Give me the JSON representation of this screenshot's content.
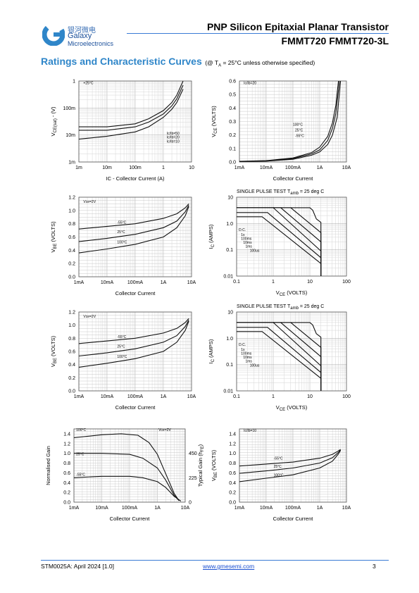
{
  "header": {
    "brand_cn": "银河微电",
    "brand_en_1": "Galaxy",
    "brand_en_2": "Microelectronics",
    "title": "PNP Silicon Epitaxial Planar Transistor",
    "part_numbers": "FMMT720  FMMT720-3L",
    "accent_color": "#3a7bd5",
    "logo_icon": "galaxy-g-logo-icon"
  },
  "section": {
    "title": "Ratings and Characteristic Curves",
    "note": "(@ T",
    "note_sub": "A",
    "note_tail": " = 25°C unless otherwise specified)"
  },
  "charts": [
    {
      "id": "vce-sat-vs-ic",
      "type": "line",
      "ylabel_main": "V",
      "ylabel_sub": "CE(sat)",
      "ylabel_tail": " - (V)",
      "xlabel": "IC - Collector Current (A)",
      "x_ticks": [
        "1m",
        "10m",
        "100m",
        "1",
        "10"
      ],
      "y_ticks": [
        "1m",
        "10m",
        "100m",
        "1"
      ],
      "x_scale": "log",
      "y_scale": "log",
      "xlim": [
        0.001,
        10
      ],
      "ylim": [
        0.001,
        1
      ],
      "annotations": [
        "+25°C",
        "Ic/Ib=50",
        "Ic/Ib=20",
        "Ic/Ib=10"
      ],
      "series": [
        {
          "x": [
            0.001,
            0.01,
            0.1,
            0.3,
            1,
            2,
            3,
            5
          ],
          "y": [
            0.02,
            0.02,
            0.026,
            0.04,
            0.08,
            0.16,
            0.3,
            1.0
          ]
        },
        {
          "x": [
            0.001,
            0.01,
            0.1,
            0.3,
            1,
            2,
            3,
            5
          ],
          "y": [
            0.015,
            0.015,
            0.02,
            0.03,
            0.06,
            0.12,
            0.22,
            0.7
          ]
        },
        {
          "x": [
            0.001,
            0.01,
            0.1,
            0.3,
            1,
            2,
            3,
            5
          ],
          "y": [
            0.007,
            0.009,
            0.013,
            0.02,
            0.045,
            0.09,
            0.16,
            0.5
          ]
        }
      ]
    },
    {
      "id": "vce-vs-ic",
      "type": "line",
      "ylabel_main": "V",
      "ylabel_sub": "CE",
      "ylabel_tail": "  (VOLTS)",
      "xlabel": "Collector Current",
      "x_ticks": [
        "1mA",
        "10mA",
        "100mA",
        "1A",
        "10A"
      ],
      "y_ticks": [
        "0.0",
        "0.1",
        "0.2",
        "0.3",
        "0.4",
        "0.5",
        "0.6"
      ],
      "x_scale": "log",
      "y_scale": "linear",
      "xlim": [
        0.001,
        10
      ],
      "ylim": [
        0,
        0.6
      ],
      "annotations": [
        "Ic/Ib=20",
        "100°C",
        "25°C",
        "-55°C"
      ],
      "series": [
        {
          "x": [
            0.001,
            0.01,
            0.1,
            0.5,
            1,
            2,
            3,
            4,
            5
          ],
          "y": [
            0.005,
            0.01,
            0.03,
            0.07,
            0.11,
            0.19,
            0.29,
            0.42,
            0.6
          ]
        },
        {
          "x": [
            0.001,
            0.01,
            0.1,
            0.5,
            1,
            2,
            3,
            4,
            5.5
          ],
          "y": [
            0.004,
            0.008,
            0.025,
            0.06,
            0.09,
            0.16,
            0.25,
            0.36,
            0.6
          ]
        },
        {
          "x": [
            0.001,
            0.01,
            0.1,
            0.5,
            1,
            2,
            3,
            4.5,
            6
          ],
          "y": [
            0.003,
            0.006,
            0.02,
            0.05,
            0.075,
            0.13,
            0.2,
            0.33,
            0.6
          ]
        }
      ]
    },
    {
      "id": "vbe-vs-ic-1",
      "type": "line",
      "ylabel_main": "V",
      "ylabel_sub": "BE",
      "ylabel_tail": "  (VOLTS)",
      "xlabel": "Collector Current",
      "x_ticks": [
        "1mA",
        "10mA",
        "100mA",
        "1A",
        "10A"
      ],
      "y_ticks": [
        "0.0",
        "0.2",
        "0.4",
        "0.6",
        "0.8",
        "1.0",
        "1.2"
      ],
      "x_scale": "log",
      "y_scale": "linear",
      "xlim": [
        0.001,
        10
      ],
      "ylim": [
        0,
        1.2
      ],
      "annotations": [
        "Vce=2V",
        "-55°C",
        "25°C",
        "100°C"
      ],
      "series": [
        {
          "x": [
            0.001,
            0.01,
            0.1,
            1,
            3,
            6,
            8
          ],
          "y": [
            0.72,
            0.76,
            0.8,
            0.88,
            0.95,
            1.04,
            1.1
          ]
        },
        {
          "x": [
            0.001,
            0.01,
            0.1,
            1,
            3,
            6,
            8
          ],
          "y": [
            0.53,
            0.58,
            0.64,
            0.74,
            0.84,
            0.98,
            1.08
          ]
        },
        {
          "x": [
            0.001,
            0.01,
            0.1,
            1,
            3,
            6,
            8
          ],
          "y": [
            0.36,
            0.42,
            0.49,
            0.6,
            0.74,
            0.92,
            1.06
          ]
        }
      ]
    },
    {
      "id": "soa-1",
      "type": "line",
      "title": "SINGLE PULSE TEST  T",
      "title_sub": "amb",
      "title_tail": " = 25 deg C",
      "ylabel_main": "I",
      "ylabel_sub": "C",
      "ylabel_tail": "  (AMPS)",
      "xlabel_main": "V",
      "xlabel_sub": "CE",
      "xlabel_tail": " (VOLTS)",
      "x_ticks": [
        "0.1",
        "1",
        "10",
        "100"
      ],
      "y_ticks": [
        "0.01",
        "0.1",
        "1.0",
        "10"
      ],
      "x_scale": "log",
      "y_scale": "log",
      "xlim": [
        0.1,
        100
      ],
      "ylim": [
        0.01,
        10
      ],
      "annotations": [
        "D.C.",
        "1s",
        "100ms",
        "10ms",
        "1ms",
        "100us"
      ],
      "series": [
        {
          "name": "D.C.",
          "x": [
            0.1,
            0.5,
            20,
            20
          ],
          "y": [
            1.8,
            1.8,
            0.03,
            0.01
          ]
        },
        {
          "name": "1s",
          "x": [
            0.1,
            0.7,
            20,
            20
          ],
          "y": [
            2.6,
            2.6,
            0.05,
            0.01
          ]
        },
        {
          "name": "100ms",
          "x": [
            0.1,
            1.0,
            20,
            20
          ],
          "y": [
            4.0,
            4.0,
            0.09,
            0.01
          ]
        },
        {
          "name": "10ms",
          "x": [
            0.1,
            1.6,
            20,
            20
          ],
          "y": [
            4.0,
            4.0,
            0.2,
            0.01
          ]
        },
        {
          "name": "1ms",
          "x": [
            0.1,
            3.0,
            20,
            20
          ],
          "y": [
            4.0,
            4.0,
            0.45,
            0.01
          ]
        },
        {
          "name": "100us",
          "x": [
            0.1,
            10,
            12,
            15,
            20,
            20
          ],
          "y": [
            4.0,
            4.0,
            3.2,
            1.5,
            1.1,
            0.01
          ]
        }
      ]
    },
    {
      "id": "vbe-vs-ic-2",
      "type": "line",
      "ylabel_main": "V",
      "ylabel_sub": "BE",
      "ylabel_tail": "  (VOLTS)",
      "xlabel": "Collector Current",
      "x_ticks": [
        "1mA",
        "10mA",
        "100mA",
        "1A",
        "10A"
      ],
      "y_ticks": [
        "0.0",
        "0.2",
        "0.4",
        "0.6",
        "0.8",
        "1.0",
        "1.2"
      ],
      "x_scale": "log",
      "y_scale": "linear",
      "xlim": [
        0.001,
        10
      ],
      "ylim": [
        0,
        1.2
      ],
      "annotations": [
        "Vce=2V",
        "-55°C",
        "25°C",
        "100°C"
      ],
      "series": [
        {
          "x": [
            0.001,
            0.01,
            0.1,
            1,
            3,
            6,
            8
          ],
          "y": [
            0.72,
            0.76,
            0.8,
            0.88,
            0.95,
            1.04,
            1.1
          ]
        },
        {
          "x": [
            0.001,
            0.01,
            0.1,
            1,
            3,
            6,
            8
          ],
          "y": [
            0.53,
            0.58,
            0.64,
            0.74,
            0.84,
            0.98,
            1.08
          ]
        },
        {
          "x": [
            0.001,
            0.01,
            0.1,
            1,
            3,
            6,
            8
          ],
          "y": [
            0.36,
            0.42,
            0.49,
            0.6,
            0.74,
            0.92,
            1.06
          ]
        }
      ]
    },
    {
      "id": "soa-2",
      "type": "line",
      "title": "SINGLE PULSE TEST  T",
      "title_sub": "amb",
      "title_tail": " = 25 deg C",
      "ylabel_main": "I",
      "ylabel_sub": "C",
      "ylabel_tail": "  (AMPS)",
      "xlabel_main": "V",
      "xlabel_sub": "CE",
      "xlabel_tail": " (VOLTS)",
      "x_ticks": [
        "0.1",
        "1",
        "10",
        "100"
      ],
      "y_ticks": [
        "0.01",
        "0.1",
        "1.0",
        "10"
      ],
      "x_scale": "log",
      "y_scale": "log",
      "xlim": [
        0.1,
        100
      ],
      "ylim": [
        0.01,
        10
      ],
      "annotations": [
        "D.C.",
        "1s",
        "100ms",
        "10ms",
        "1ms",
        "100us"
      ],
      "series": [
        {
          "name": "D.C.",
          "x": [
            0.1,
            0.5,
            20,
            20
          ],
          "y": [
            1.8,
            1.8,
            0.03,
            0.01
          ]
        },
        {
          "name": "1s",
          "x": [
            0.1,
            0.7,
            20,
            20
          ],
          "y": [
            2.6,
            2.6,
            0.05,
            0.01
          ]
        },
        {
          "name": "100ms",
          "x": [
            0.1,
            1.0,
            20,
            20
          ],
          "y": [
            4.0,
            4.0,
            0.09,
            0.01
          ]
        },
        {
          "name": "10ms",
          "x": [
            0.1,
            1.6,
            20,
            20
          ],
          "y": [
            4.0,
            4.0,
            0.2,
            0.01
          ]
        },
        {
          "name": "1ms",
          "x": [
            0.1,
            3.0,
            20,
            20
          ],
          "y": [
            4.0,
            4.0,
            0.45,
            0.01
          ]
        },
        {
          "name": "100us",
          "x": [
            0.1,
            10,
            12,
            15,
            20,
            20
          ],
          "y": [
            4.0,
            4.0,
            3.2,
            1.5,
            1.1,
            0.01
          ]
        }
      ]
    },
    {
      "id": "gain-vs-ic",
      "type": "line",
      "ylabel_main": "Normalised Gain",
      "y2label_main": "Typical Gain  (h",
      "y2label_sub": "FE",
      "y2label_tail": ")",
      "xlabel": "Collector Current",
      "x_ticks": [
        "1mA",
        "10mA",
        "100mA",
        "1A",
        "10A"
      ],
      "y_ticks": [
        "0.0",
        "0.2",
        "0.4",
        "0.6",
        "0.8",
        "1.0",
        "1.2",
        "1.4"
      ],
      "y2_ticks": [
        "0",
        "225",
        "450"
      ],
      "x_scale": "log",
      "y_scale": "linear",
      "xlim": [
        0.001,
        10
      ],
      "ylim": [
        0,
        1.5
      ],
      "y2lim": [
        0,
        675
      ],
      "annotations": [
        "100°C",
        "Vce=2V",
        "25°C",
        "-55°C"
      ],
      "series": [
        {
          "x": [
            0.001,
            0.01,
            0.05,
            0.2,
            0.5,
            1,
            2,
            4,
            6
          ],
          "y": [
            1.32,
            1.38,
            1.4,
            1.37,
            1.22,
            0.98,
            0.58,
            0.18,
            0.03
          ]
        },
        {
          "x": [
            0.001,
            0.01,
            0.1,
            0.3,
            1,
            2,
            4,
            6
          ],
          "y": [
            1.0,
            1.0,
            0.98,
            0.9,
            0.7,
            0.45,
            0.14,
            0.03
          ]
        },
        {
          "x": [
            0.001,
            0.01,
            0.1,
            0.3,
            1,
            2,
            4,
            7
          ],
          "y": [
            0.5,
            0.53,
            0.53,
            0.5,
            0.42,
            0.3,
            0.12,
            0.02
          ]
        }
      ]
    },
    {
      "id": "vbe-vs-ic-3",
      "type": "line",
      "ylabel_main": "V",
      "ylabel_sub": "BE",
      "ylabel_tail": "  (VOLTS)",
      "xlabel": "Collector Current",
      "x_ticks": [
        "1mA",
        "10mA",
        "100mA",
        "1A",
        "10A"
      ],
      "y_ticks": [
        "0.0",
        "0.2",
        "0.4",
        "0.6",
        "0.8",
        "1.0",
        "1.2",
        "1.4"
      ],
      "x_scale": "log",
      "y_scale": "linear",
      "xlim": [
        0.001,
        10
      ],
      "ylim": [
        0,
        1.5
      ],
      "annotations": [
        "Ic/Ib=10",
        "-55°C",
        "25°C",
        "100°C"
      ],
      "series": [
        {
          "x": [
            0.001,
            0.01,
            0.1,
            1,
            3,
            5,
            6
          ],
          "y": [
            0.74,
            0.78,
            0.82,
            0.9,
            0.98,
            1.05,
            1.08
          ]
        },
        {
          "x": [
            0.001,
            0.01,
            0.1,
            1,
            3,
            5,
            6
          ],
          "y": [
            0.59,
            0.64,
            0.7,
            0.8,
            0.91,
            1.02,
            1.07
          ]
        },
        {
          "x": [
            0.001,
            0.01,
            0.1,
            1,
            3,
            5,
            6
          ],
          "y": [
            0.42,
            0.49,
            0.56,
            0.7,
            0.84,
            0.99,
            1.06
          ]
        }
      ]
    }
  ],
  "footer": {
    "doc_id": "STM0025A: April 2024 [1.0]",
    "website": "www.gmesemi.com",
    "page_number": "3"
  }
}
